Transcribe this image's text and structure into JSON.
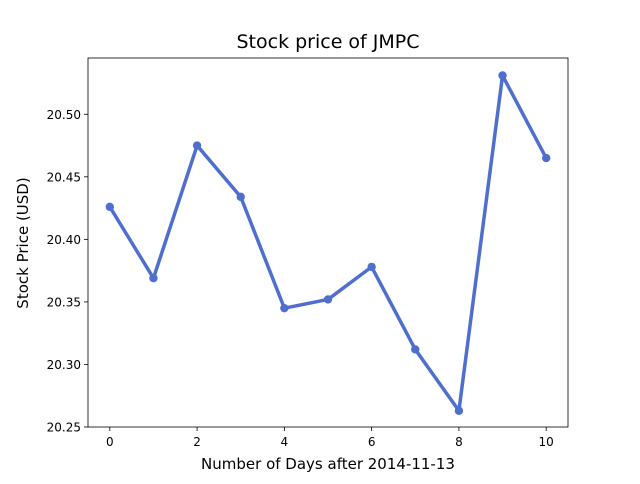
{
  "chart_data": {
    "type": "line",
    "title": "Stock price of JMPC",
    "xlabel": "Number of Days after 2014-11-13",
    "ylabel": "Stock Price (USD)",
    "x": [
      0,
      1,
      2,
      3,
      4,
      5,
      6,
      7,
      8,
      9,
      10
    ],
    "series": [
      {
        "values": [
          20.426,
          20.369,
          20.475,
          20.434,
          20.345,
          20.352,
          20.378,
          20.312,
          20.263,
          20.531,
          20.465
        ],
        "color": "#4f6fcf"
      }
    ],
    "xlim": [
      -0.5,
      10.5
    ],
    "ylim": [
      20.25,
      20.545
    ],
    "x_ticks": [
      0,
      2,
      4,
      6,
      8,
      10
    ],
    "x_tick_labels": [
      "0",
      "2",
      "4",
      "6",
      "8",
      "10"
    ],
    "y_ticks": [
      20.25,
      20.3,
      20.35,
      20.4,
      20.45,
      20.5
    ],
    "y_tick_labels": [
      "20.25",
      "20.30",
      "20.35",
      "20.40",
      "20.45",
      "20.50"
    ],
    "grid": false,
    "legend": "none"
  }
}
